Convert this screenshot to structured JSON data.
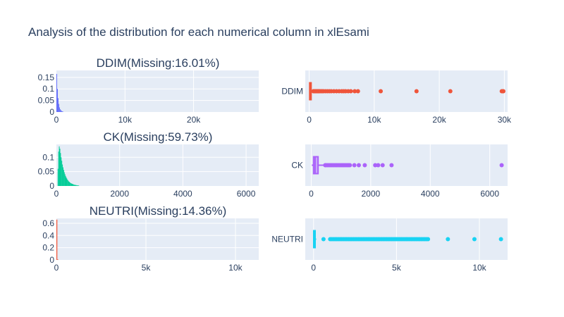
{
  "title": "Analysis of the distribution for each numerical column in xlEsami",
  "colors": {
    "plot_bg": "#E5ECF6",
    "grid": "#ffffff",
    "text": "#2a3f5f"
  },
  "chart_data": [
    {
      "type": "bar",
      "subtitle": "DDIM(Missing:16.01%)",
      "color": "#636efa",
      "xlim": [
        0,
        29500
      ],
      "ylim": [
        0,
        0.18
      ],
      "x_ticks": [
        {
          "v": 0,
          "label": "0"
        },
        {
          "v": 10000,
          "label": "10k"
        },
        {
          "v": 20000,
          "label": "20k"
        }
      ],
      "y_ticks": [
        {
          "v": 0,
          "label": "0"
        },
        {
          "v": 0.05,
          "label": "0.05"
        },
        {
          "v": 0.1,
          "label": "0.1"
        },
        {
          "v": 0.15,
          "label": "0.15"
        }
      ],
      "bin_width": 100,
      "bin_starts": [
        0,
        100,
        200,
        300,
        400,
        500,
        600,
        700,
        800,
        900
      ],
      "values": [
        0.165,
        0.1,
        0.06,
        0.035,
        0.02,
        0.012,
        0.008,
        0.005,
        0.003,
        0.002
      ]
    },
    {
      "type": "bar",
      "subtitle": "CK(Missing:59.73%)",
      "color": "#00cc96",
      "xlim": [
        0,
        6400
      ],
      "ylim": [
        0,
        0.145
      ],
      "x_ticks": [
        {
          "v": 0,
          "label": "0"
        },
        {
          "v": 2000,
          "label": "2000"
        },
        {
          "v": 4000,
          "label": "4000"
        },
        {
          "v": 6000,
          "label": "6000"
        }
      ],
      "y_ticks": [
        {
          "v": 0,
          "label": "0"
        },
        {
          "v": 0.05,
          "label": "0.05"
        },
        {
          "v": 0.1,
          "label": "0.1"
        }
      ],
      "bin_width": 20,
      "bin_starts": [
        40,
        60,
        80,
        100,
        120,
        140,
        160,
        180,
        200,
        220,
        240,
        260,
        280,
        300,
        320,
        340,
        360,
        380,
        400,
        420,
        440,
        460,
        480,
        500,
        520,
        540,
        560,
        580,
        600,
        620,
        640,
        660,
        680,
        700
      ],
      "values": [
        0.06,
        0.12,
        0.138,
        0.13,
        0.115,
        0.1,
        0.088,
        0.075,
        0.065,
        0.056,
        0.048,
        0.041,
        0.035,
        0.03,
        0.026,
        0.022,
        0.019,
        0.016,
        0.014,
        0.012,
        0.01,
        0.009,
        0.008,
        0.007,
        0.006,
        0.005,
        0.004,
        0.004,
        0.003,
        0.003,
        0.002,
        0.002,
        0.002,
        0.001
      ]
    },
    {
      "type": "bar",
      "subtitle": "NEUTRI(Missing:14.36%)",
      "color": "#ef553b",
      "xlim": [
        0,
        11300
      ],
      "ylim": [
        0,
        0.68
      ],
      "x_ticks": [
        {
          "v": 0,
          "label": "0"
        },
        {
          "v": 5000,
          "label": "5k"
        },
        {
          "v": 10000,
          "label": "10k"
        }
      ],
      "y_ticks": [
        {
          "v": 0,
          "label": "0"
        },
        {
          "v": 0.2,
          "label": "0.2"
        },
        {
          "v": 0.4,
          "label": "0.4"
        },
        {
          "v": 0.6,
          "label": "0.6"
        }
      ],
      "bin_width": 50,
      "bin_starts": [
        0,
        50
      ],
      "values": [
        0.66,
        0.01
      ]
    },
    {
      "type": "box",
      "category": "DDIM",
      "color": "#ef553b",
      "xlim": [
        -600,
        30500
      ],
      "x_ticks": [
        {
          "v": 0,
          "label": "0"
        },
        {
          "v": 10000,
          "label": "10k"
        },
        {
          "v": 20000,
          "label": "20k"
        },
        {
          "v": 30000,
          "label": "30k"
        }
      ],
      "box": {
        "q1": 80,
        "median": 150,
        "q3": 300,
        "lower_fence": 0,
        "upper_fence": 600
      },
      "outliers": [
        650,
        700,
        800,
        900,
        1000,
        1100,
        1200,
        1300,
        1400,
        1500,
        1600,
        1800,
        2000,
        2200,
        2500,
        2800,
        3100,
        3400,
        3800,
        4200,
        4600,
        5000,
        5300,
        5600,
        6000,
        6400,
        7000,
        7500,
        11000,
        16500,
        21700,
        29600,
        29750,
        29850
      ]
    },
    {
      "type": "box",
      "category": "CK",
      "color": "#ab63fa",
      "xlim": [
        -200,
        6600
      ],
      "x_ticks": [
        {
          "v": 0,
          "label": "0"
        },
        {
          "v": 2000,
          "label": "2000"
        },
        {
          "v": 4000,
          "label": "4000"
        },
        {
          "v": 6000,
          "label": "6000"
        }
      ],
      "box": {
        "q1": 80,
        "median": 130,
        "q3": 230,
        "lower_fence": 20,
        "upper_fence": 450
      },
      "outliers": [
        470,
        500,
        550,
        600,
        650,
        700,
        750,
        800,
        850,
        900,
        950,
        1000,
        1050,
        1100,
        1150,
        1200,
        1250,
        1300,
        1450,
        1600,
        1800,
        2150,
        2250,
        2400,
        2700,
        6400
      ]
    },
    {
      "type": "box",
      "category": "NEUTRI",
      "color": "#19d3f3",
      "xlim": [
        -500,
        11700
      ],
      "x_ticks": [
        {
          "v": 0,
          "label": "0"
        },
        {
          "v": 5000,
          "label": "5k"
        },
        {
          "v": 10000,
          "label": "10k"
        }
      ],
      "box": {
        "q1": 10,
        "median": 40,
        "q3": 80,
        "lower_fence": 0,
        "upper_fence": 160
      },
      "outliers": [
        600,
        1000,
        1100,
        1200,
        1300,
        1400,
        1500,
        1600,
        1700,
        1800,
        1900,
        2000,
        2100,
        2200,
        2300,
        2400,
        2500,
        2600,
        2700,
        2800,
        2900,
        3000,
        3100,
        3200,
        3300,
        3400,
        3500,
        3600,
        3700,
        3800,
        3900,
        4000,
        4100,
        4200,
        4300,
        4400,
        4500,
        4600,
        4700,
        4800,
        4900,
        5000,
        5100,
        5200,
        5300,
        5400,
        5500,
        5600,
        5700,
        5800,
        5900,
        6000,
        6100,
        6200,
        6300,
        6400,
        6500,
        6600,
        6700,
        6800,
        6900,
        8100,
        9700,
        11300
      ]
    }
  ]
}
